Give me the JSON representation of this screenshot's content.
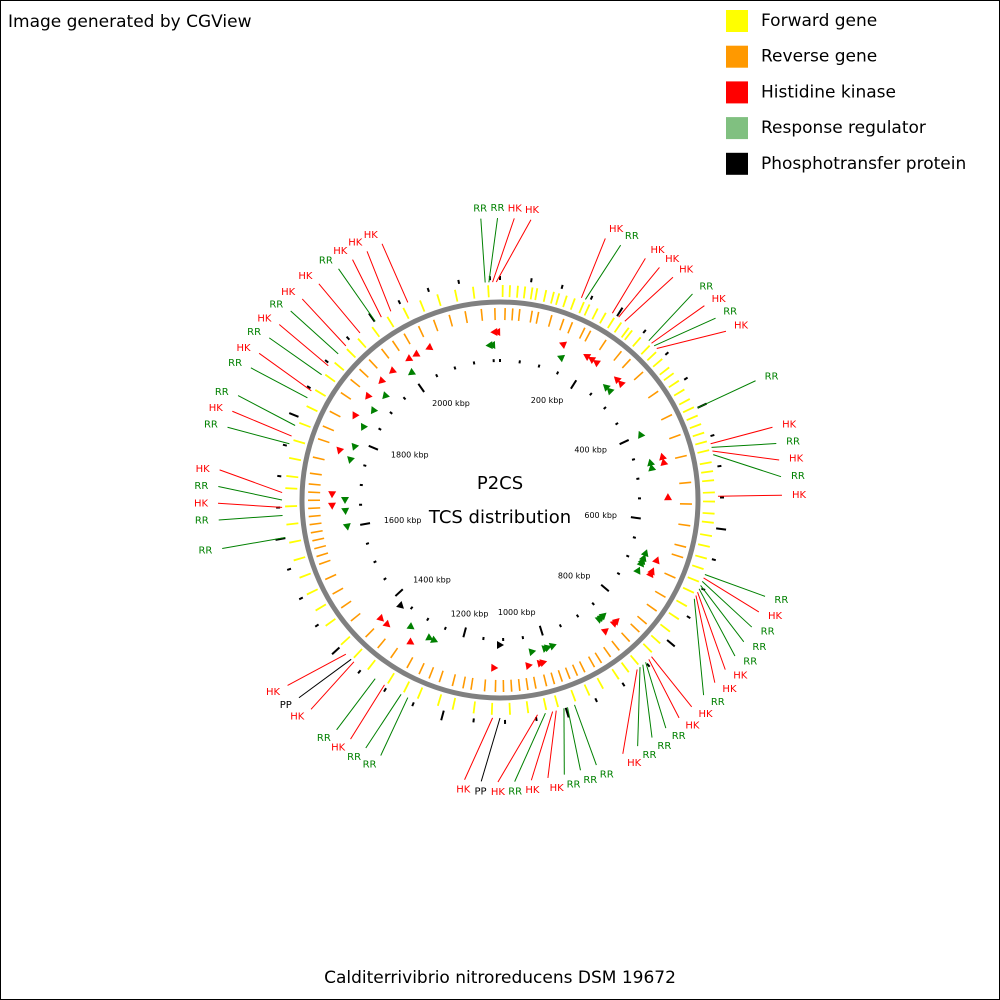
{
  "chart_data": {
    "type": "circular-genome",
    "note": "Image generated by CGView",
    "title": "P2CS",
    "subtitle": "TCS distribution",
    "caption": "Calditerrivibrio nitroreducens DSM 19672",
    "xlim": [
      0,
      2216
    ],
    "xticks": [
      {
        "value": 200,
        "label": "200 kbp"
      },
      {
        "value": 400,
        "label": "400 kbp"
      },
      {
        "value": 600,
        "label": "600 kbp"
      },
      {
        "value": 800,
        "label": "800 kbp"
      },
      {
        "value": 1000,
        "label": "1000 kbp"
      },
      {
        "value": 1200,
        "label": "1200 kbp"
      },
      {
        "value": 1400,
        "label": "1400 kbp"
      },
      {
        "value": 1600,
        "label": "1600 kbp"
      },
      {
        "value": 1800,
        "label": "1800 kbp"
      },
      {
        "value": 2000,
        "label": "2000 kbp"
      }
    ],
    "minor_ticks": [
      0,
      50,
      100,
      150,
      250,
      300,
      350,
      450,
      500,
      550,
      650,
      700,
      750,
      850,
      900,
      950,
      1050,
      1100,
      1150,
      1250,
      1300,
      1350,
      1450,
      1500,
      1550,
      1650,
      1700,
      1750,
      1850,
      1900,
      1950,
      2050,
      2100,
      2150,
      2200
    ],
    "legend": [
      {
        "name": "Forward gene",
        "color": "#ffff00"
      },
      {
        "name": "Reverse gene",
        "color": "#ff9900"
      },
      {
        "name": "Histidine kinase",
        "color": "#ff0000"
      },
      {
        "name": "Response regulator",
        "color": "#80c080"
      },
      {
        "name": "Phosphotransfer protein",
        "color": "#000000"
      }
    ],
    "label_colors": {
      "HK": "#ff0000",
      "RR": "#008000",
      "PP": "#000000"
    },
    "forward_genes": [
      3,
      15,
      28,
      40,
      52,
      60,
      75,
      88,
      97,
      110,
      124,
      140,
      150,
      165,
      180,
      196,
      210,
      225,
      232,
      250,
      270,
      285,
      300,
      318,
      330,
      345,
      362,
      380,
      395,
      410,
      425,
      440,
      455,
      470,
      490,
      505,
      520,
      540,
      555,
      575,
      590,
      612,
      630,
      650,
      668,
      690,
      710,
      735,
      760,
      785,
      810,
      830,
      860,
      880,
      900,
      930,
      955,
      980,
      1010,
      1030,
      1060,
      1090,
      1120,
      1150,
      1185,
      1210,
      1245,
      1270,
      1300,
      1340,
      1370,
      1400,
      1440,
      1470,
      1500,
      1530,
      1560,
      1590,
      1620,
      1650,
      1680,
      1700,
      1730,
      1760,
      1790,
      1820,
      1850,
      1880,
      1905,
      1935,
      1960,
      1990,
      2020,
      2050,
      2080,
      2110,
      2140,
      2170,
      2195
    ],
    "reverse_genes": [
      8,
      22,
      35,
      58,
      70,
      95,
      118,
      135,
      160,
      172,
      205,
      240,
      262,
      295,
      340,
      390,
      430,
      470,
      520,
      560,
      600,
      640,
      660,
      700,
      740,
      770,
      800,
      820,
      845,
      870,
      890,
      910,
      925,
      945,
      960,
      975,
      990,
      1005,
      1020,
      1040,
      1055,
      1070,
      1085,
      1100,
      1115,
      1135,
      1160,
      1175,
      1195,
      1220,
      1240,
      1260,
      1285,
      1320,
      1350,
      1380,
      1420,
      1450,
      1480,
      1510,
      1540,
      1555,
      1570,
      1585,
      1600,
      1615,
      1630,
      1645,
      1660,
      1675,
      1690,
      1710,
      1740,
      1775,
      1800,
      1830,
      1870,
      1900,
      1925,
      1950,
      1980,
      2005,
      2030,
      2060,
      2090,
      2120,
      2150,
      2180,
      2205
    ],
    "features": [
      {
        "name": "HK",
        "position": 135
      },
      {
        "name": "RR",
        "position": 142
      },
      {
        "name": "HK",
        "position": 191
      },
      {
        "name": "HK",
        "position": 203
      },
      {
        "name": "HK",
        "position": 215
      },
      {
        "name": "RR",
        "position": 265
      },
      {
        "name": "HK",
        "position": 271
      },
      {
        "name": "RR",
        "position": 277
      },
      {
        "name": "HK",
        "position": 283
      },
      {
        "name": "RR",
        "position": 400
      },
      {
        "name": "HK",
        "position": 462
      },
      {
        "name": "RR",
        "position": 468
      },
      {
        "name": "HK",
        "position": 474
      },
      {
        "name": "RR",
        "position": 480
      },
      {
        "name": "HK",
        "position": 548
      },
      {
        "name": "RR",
        "position": 677
      },
      {
        "name": "HK",
        "position": 683
      },
      {
        "name": "RR",
        "position": 689
      },
      {
        "name": "RR",
        "position": 696
      },
      {
        "name": "RR",
        "position": 702
      },
      {
        "name": "HK",
        "position": 708
      },
      {
        "name": "HK",
        "position": 714
      },
      {
        "name": "RR",
        "position": 720
      },
      {
        "name": "HK",
        "position": 837
      },
      {
        "name": "HK",
        "position": 843
      },
      {
        "name": "RR",
        "position": 850
      },
      {
        "name": "RR",
        "position": 856
      },
      {
        "name": "RR",
        "position": 862
      },
      {
        "name": "HK",
        "position": 868
      },
      {
        "name": "RR",
        "position": 985
      },
      {
        "name": "RR",
        "position": 997
      },
      {
        "name": "RR",
        "position": 1003
      },
      {
        "name": "HK",
        "position": 1016
      },
      {
        "name": "HK",
        "position": 1022
      },
      {
        "name": "RR",
        "position": 1034
      },
      {
        "name": "HK",
        "position": 1047
      },
      {
        "name": "PP",
        "position": 1108
      },
      {
        "name": "HK",
        "position": 1120
      },
      {
        "name": "RR",
        "position": 1262
      },
      {
        "name": "RR",
        "position": 1274
      },
      {
        "name": "HK",
        "position": 1305
      },
      {
        "name": "RR",
        "position": 1323
      },
      {
        "name": "HK",
        "position": 1367
      },
      {
        "name": "PP",
        "position": 1373
      },
      {
        "name": "HK",
        "position": 1385
      },
      {
        "name": "RR",
        "position": 1601
      },
      {
        "name": "RR",
        "position": 1637
      },
      {
        "name": "HK",
        "position": 1650
      },
      {
        "name": "RR",
        "position": 1662
      },
      {
        "name": "HK",
        "position": 1674
      },
      {
        "name": "RR",
        "position": 1754
      },
      {
        "name": "HK",
        "position": 1767
      },
      {
        "name": "RR",
        "position": 1785
      },
      {
        "name": "RR",
        "position": 1834
      },
      {
        "name": "HK",
        "position": 1847
      },
      {
        "name": "RR",
        "position": 1878
      },
      {
        "name": "HK",
        "position": 1896
      },
      {
        "name": "RR",
        "position": 1921
      },
      {
        "name": "HK",
        "position": 1939
      },
      {
        "name": "HK",
        "position": 1970
      },
      {
        "name": "RR",
        "position": 2001
      },
      {
        "name": "HK",
        "position": 2013
      },
      {
        "name": "HK",
        "position": 2031
      },
      {
        "name": "HK",
        "position": 2062
      },
      {
        "name": "RR",
        "position": 2192
      },
      {
        "name": "RR",
        "position": 2198
      },
      {
        "name": "HK",
        "position": 2204
      },
      {
        "name": "HK",
        "position": 2210
      }
    ]
  }
}
